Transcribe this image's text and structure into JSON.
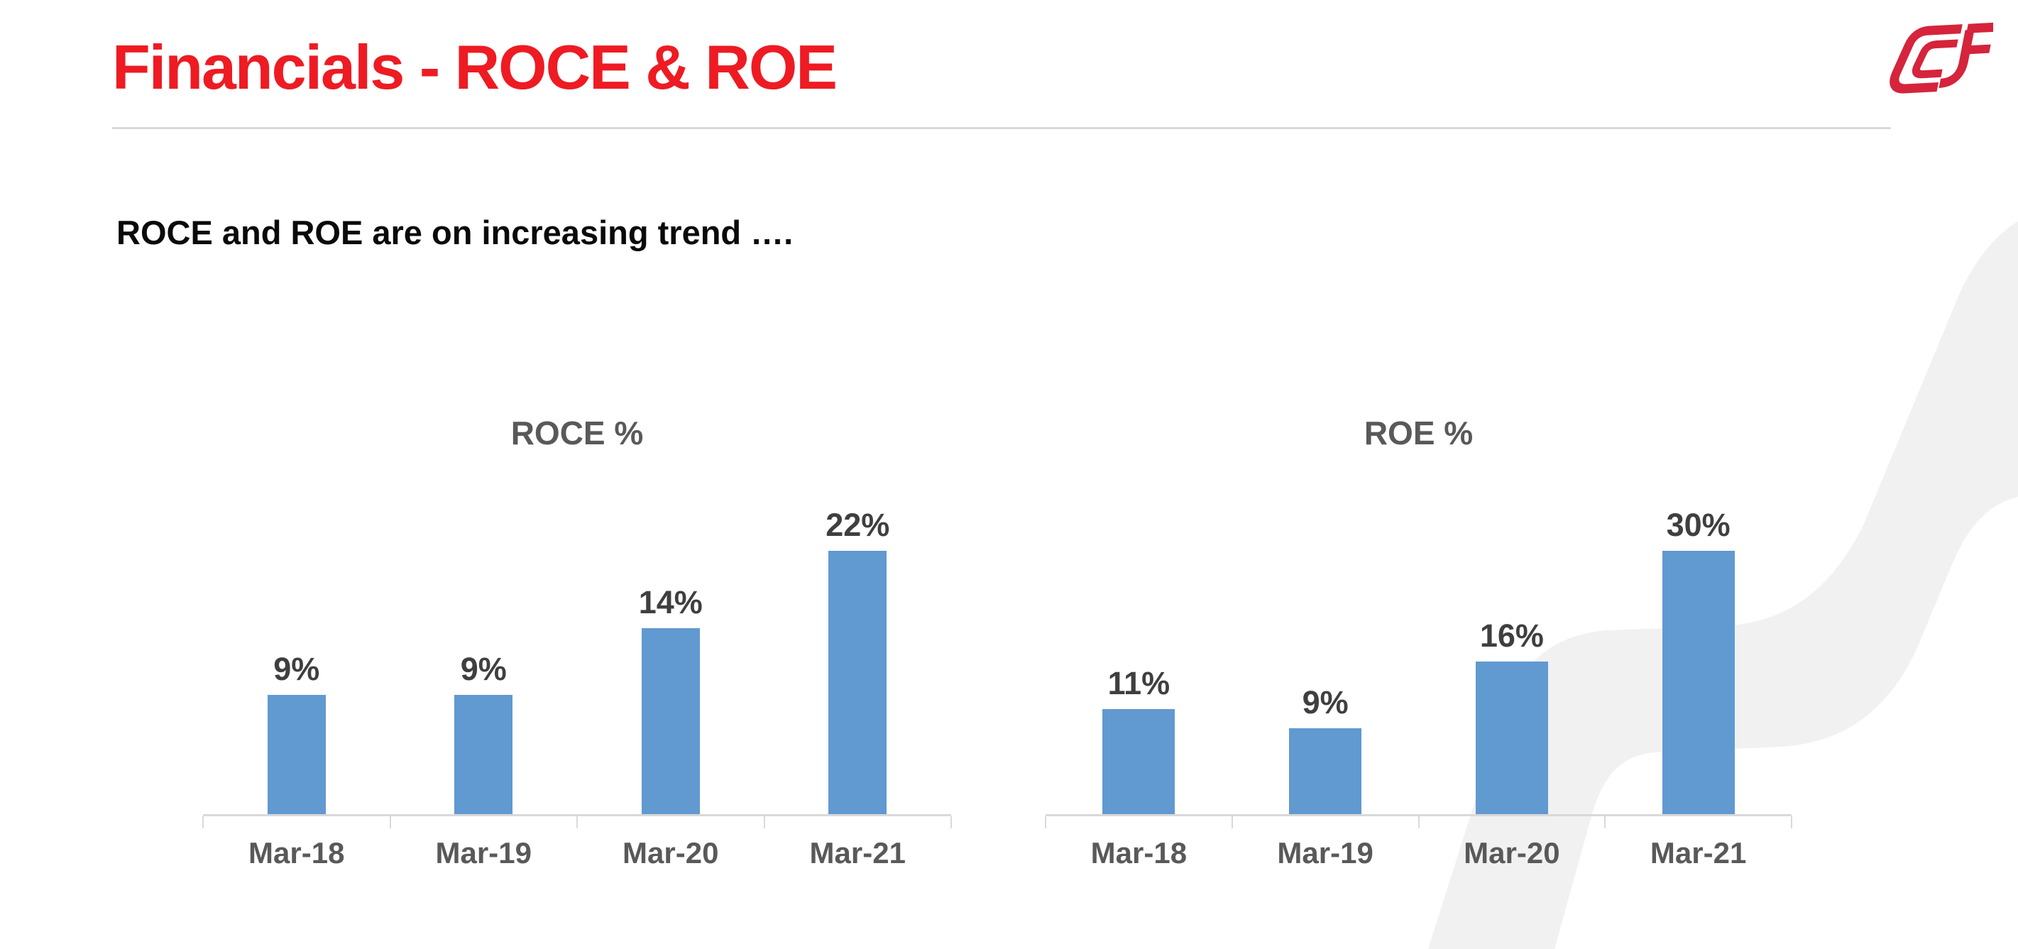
{
  "slide": {
    "title": "Financials - ROCE & ROE",
    "subtitle": "ROCE and ROE are on increasing trend ….",
    "logo": "CCF monogram",
    "colors": {
      "title_red": "#EE1B23",
      "logo_red": "#D5243C",
      "bar_blue": "#6199D1",
      "axis_gray": "#D9D9D9",
      "label_gray": "#595959",
      "value_gray": "#3F3F3F",
      "watermark_gray": "#F1F1F2"
    }
  },
  "chart_data": [
    {
      "type": "bar",
      "title": "ROCE %",
      "categories": [
        "Mar-18",
        "Mar-19",
        "Mar-20",
        "Mar-21"
      ],
      "values": [
        9,
        9,
        14,
        22
      ],
      "labels": [
        "9%",
        "9%",
        "14%",
        "22%"
      ],
      "unit": "%",
      "ylim": [
        0,
        23
      ],
      "grid": false,
      "legend": "none",
      "data_labels": "above bars",
      "bar_color": "#6199D1"
    },
    {
      "type": "bar",
      "title": "ROE %",
      "categories": [
        "Mar-18",
        "Mar-19",
        "Mar-20",
        "Mar-21"
      ],
      "values": [
        11,
        9,
        16,
        30
      ],
      "labels": [
        "11%",
        "9%",
        "16%",
        "30%"
      ],
      "unit": "%",
      "ylim": [
        0,
        32
      ],
      "grid": false,
      "legend": "none",
      "data_labels": "above bars",
      "bar_color": "#6199D1"
    }
  ]
}
